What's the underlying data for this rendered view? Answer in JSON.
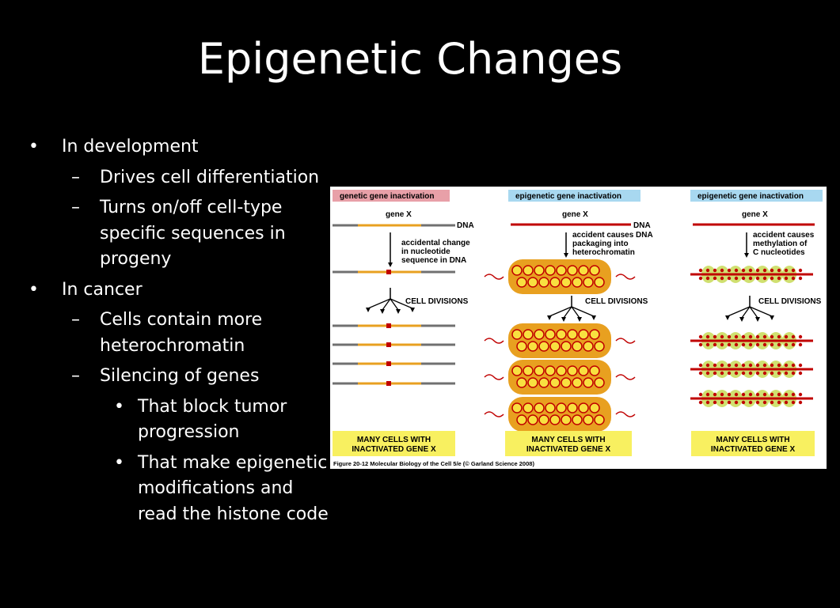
{
  "slide": {
    "title": "Epigenetic Changes",
    "bullets": [
      {
        "level": 1,
        "text": "In development"
      },
      {
        "level": 2,
        "text": "Drives cell differentiation"
      },
      {
        "level": 2,
        "text": "Turns on/off cell-type specific sequences in progeny"
      },
      {
        "level": 1,
        "text": "In cancer"
      },
      {
        "level": 2,
        "text": "Cells contain more heterochromatin"
      },
      {
        "level": 2,
        "text": "Silencing of genes"
      },
      {
        "level": 3,
        "text": "That block tumor progression"
      },
      {
        "level": 3,
        "text": "That make epigenetic modifications and read the histone code"
      }
    ]
  },
  "figure": {
    "panels": [
      {
        "header": "genetic gene inactivation",
        "header_color": "#e8a0a8",
        "gene_label": "gene X",
        "dna_label": "DNA",
        "step_text": [
          "accidental change",
          "in nucleotide",
          "sequence in DNA"
        ],
        "division_label": "CELL DIVISIONS",
        "result": [
          "MANY CELLS WITH",
          "INACTIVATED GENE X"
        ]
      },
      {
        "header": "epigenetic gene inactivation",
        "header_color": "#a8d8f0",
        "gene_label": "gene X",
        "dna_label": "DNA",
        "step_text": [
          "accident causes DNA",
          "packaging into",
          "heterochromatin"
        ],
        "division_label": "CELL DIVISIONS",
        "result": [
          "MANY CELLS WITH",
          "INACTIVATED GENE X"
        ]
      },
      {
        "header": "epigenetic gene inactivation",
        "header_color": "#a8d8f0",
        "gene_label": "gene X",
        "dna_label": "",
        "step_text": [
          "accident causes",
          "methylation of",
          "C nucleotides"
        ],
        "division_label": "CELL DIVISIONS",
        "result": [
          "MANY CELLS WITH",
          "INACTIVATED GENE X"
        ]
      }
    ],
    "caption": "Figure 20-12  Molecular Biology of the Cell 5/e (© Garland Science 2008)",
    "colors": {
      "gene": "#e8a020",
      "dna_gray": "#707070",
      "dna_red": "#c00000",
      "mutation": "#c00000",
      "nucleosome": "#e8a020",
      "methyl_bead": "#d0e070",
      "result_box": "#f8f060"
    }
  }
}
